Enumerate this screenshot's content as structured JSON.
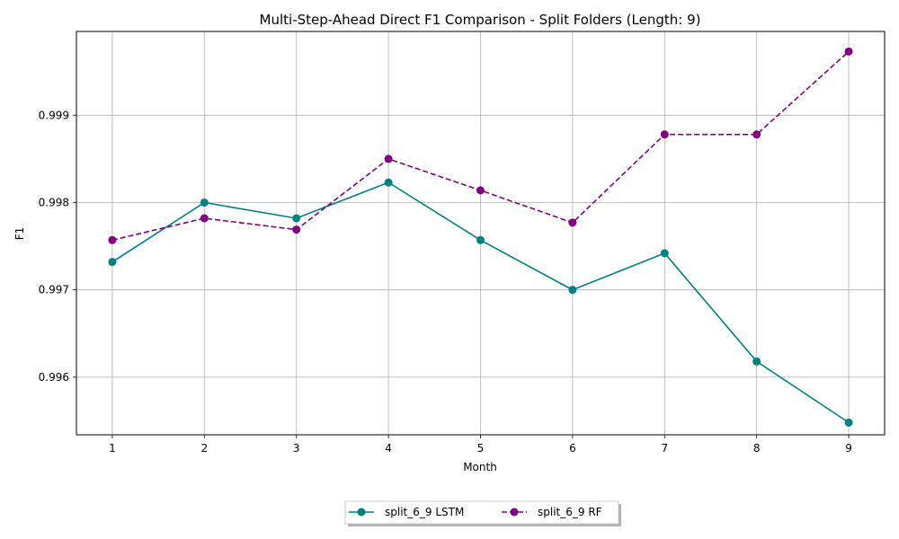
{
  "chart_data": {
    "type": "line",
    "title": "Multi-Step-Ahead Direct F1 Comparison - Split Folders (Length: 9)",
    "xlabel": "Month",
    "ylabel": "F1",
    "x": [
      1,
      2,
      3,
      4,
      5,
      6,
      7,
      8,
      9
    ],
    "xlim": [
      0.61,
      9.39
    ],
    "ylim": [
      0.99534,
      0.99996
    ],
    "yticks": [
      0.996,
      0.997,
      0.998,
      0.999
    ],
    "ytick_labels": [
      "0.996",
      "0.997",
      "0.998",
      "0.999"
    ],
    "xtick_labels": [
      "1",
      "2",
      "3",
      "4",
      "5",
      "6",
      "7",
      "8",
      "9"
    ],
    "grid": true,
    "legend_position": "bottom-center",
    "series": [
      {
        "name": "split_6_9 LSTM",
        "color": "#008080",
        "linestyle": "solid",
        "marker": "circle",
        "values": [
          0.99732,
          0.998,
          0.99782,
          0.99823,
          0.99757,
          0.997,
          0.99742,
          0.99618,
          0.99548
        ]
      },
      {
        "name": "split_6_9 RF",
        "color": "#800080",
        "linestyle": "dashed",
        "marker": "circle",
        "values": [
          0.99757,
          0.99782,
          0.99769,
          0.9985,
          0.99814,
          0.99777,
          0.99878,
          0.99878,
          0.99973
        ]
      }
    ]
  }
}
